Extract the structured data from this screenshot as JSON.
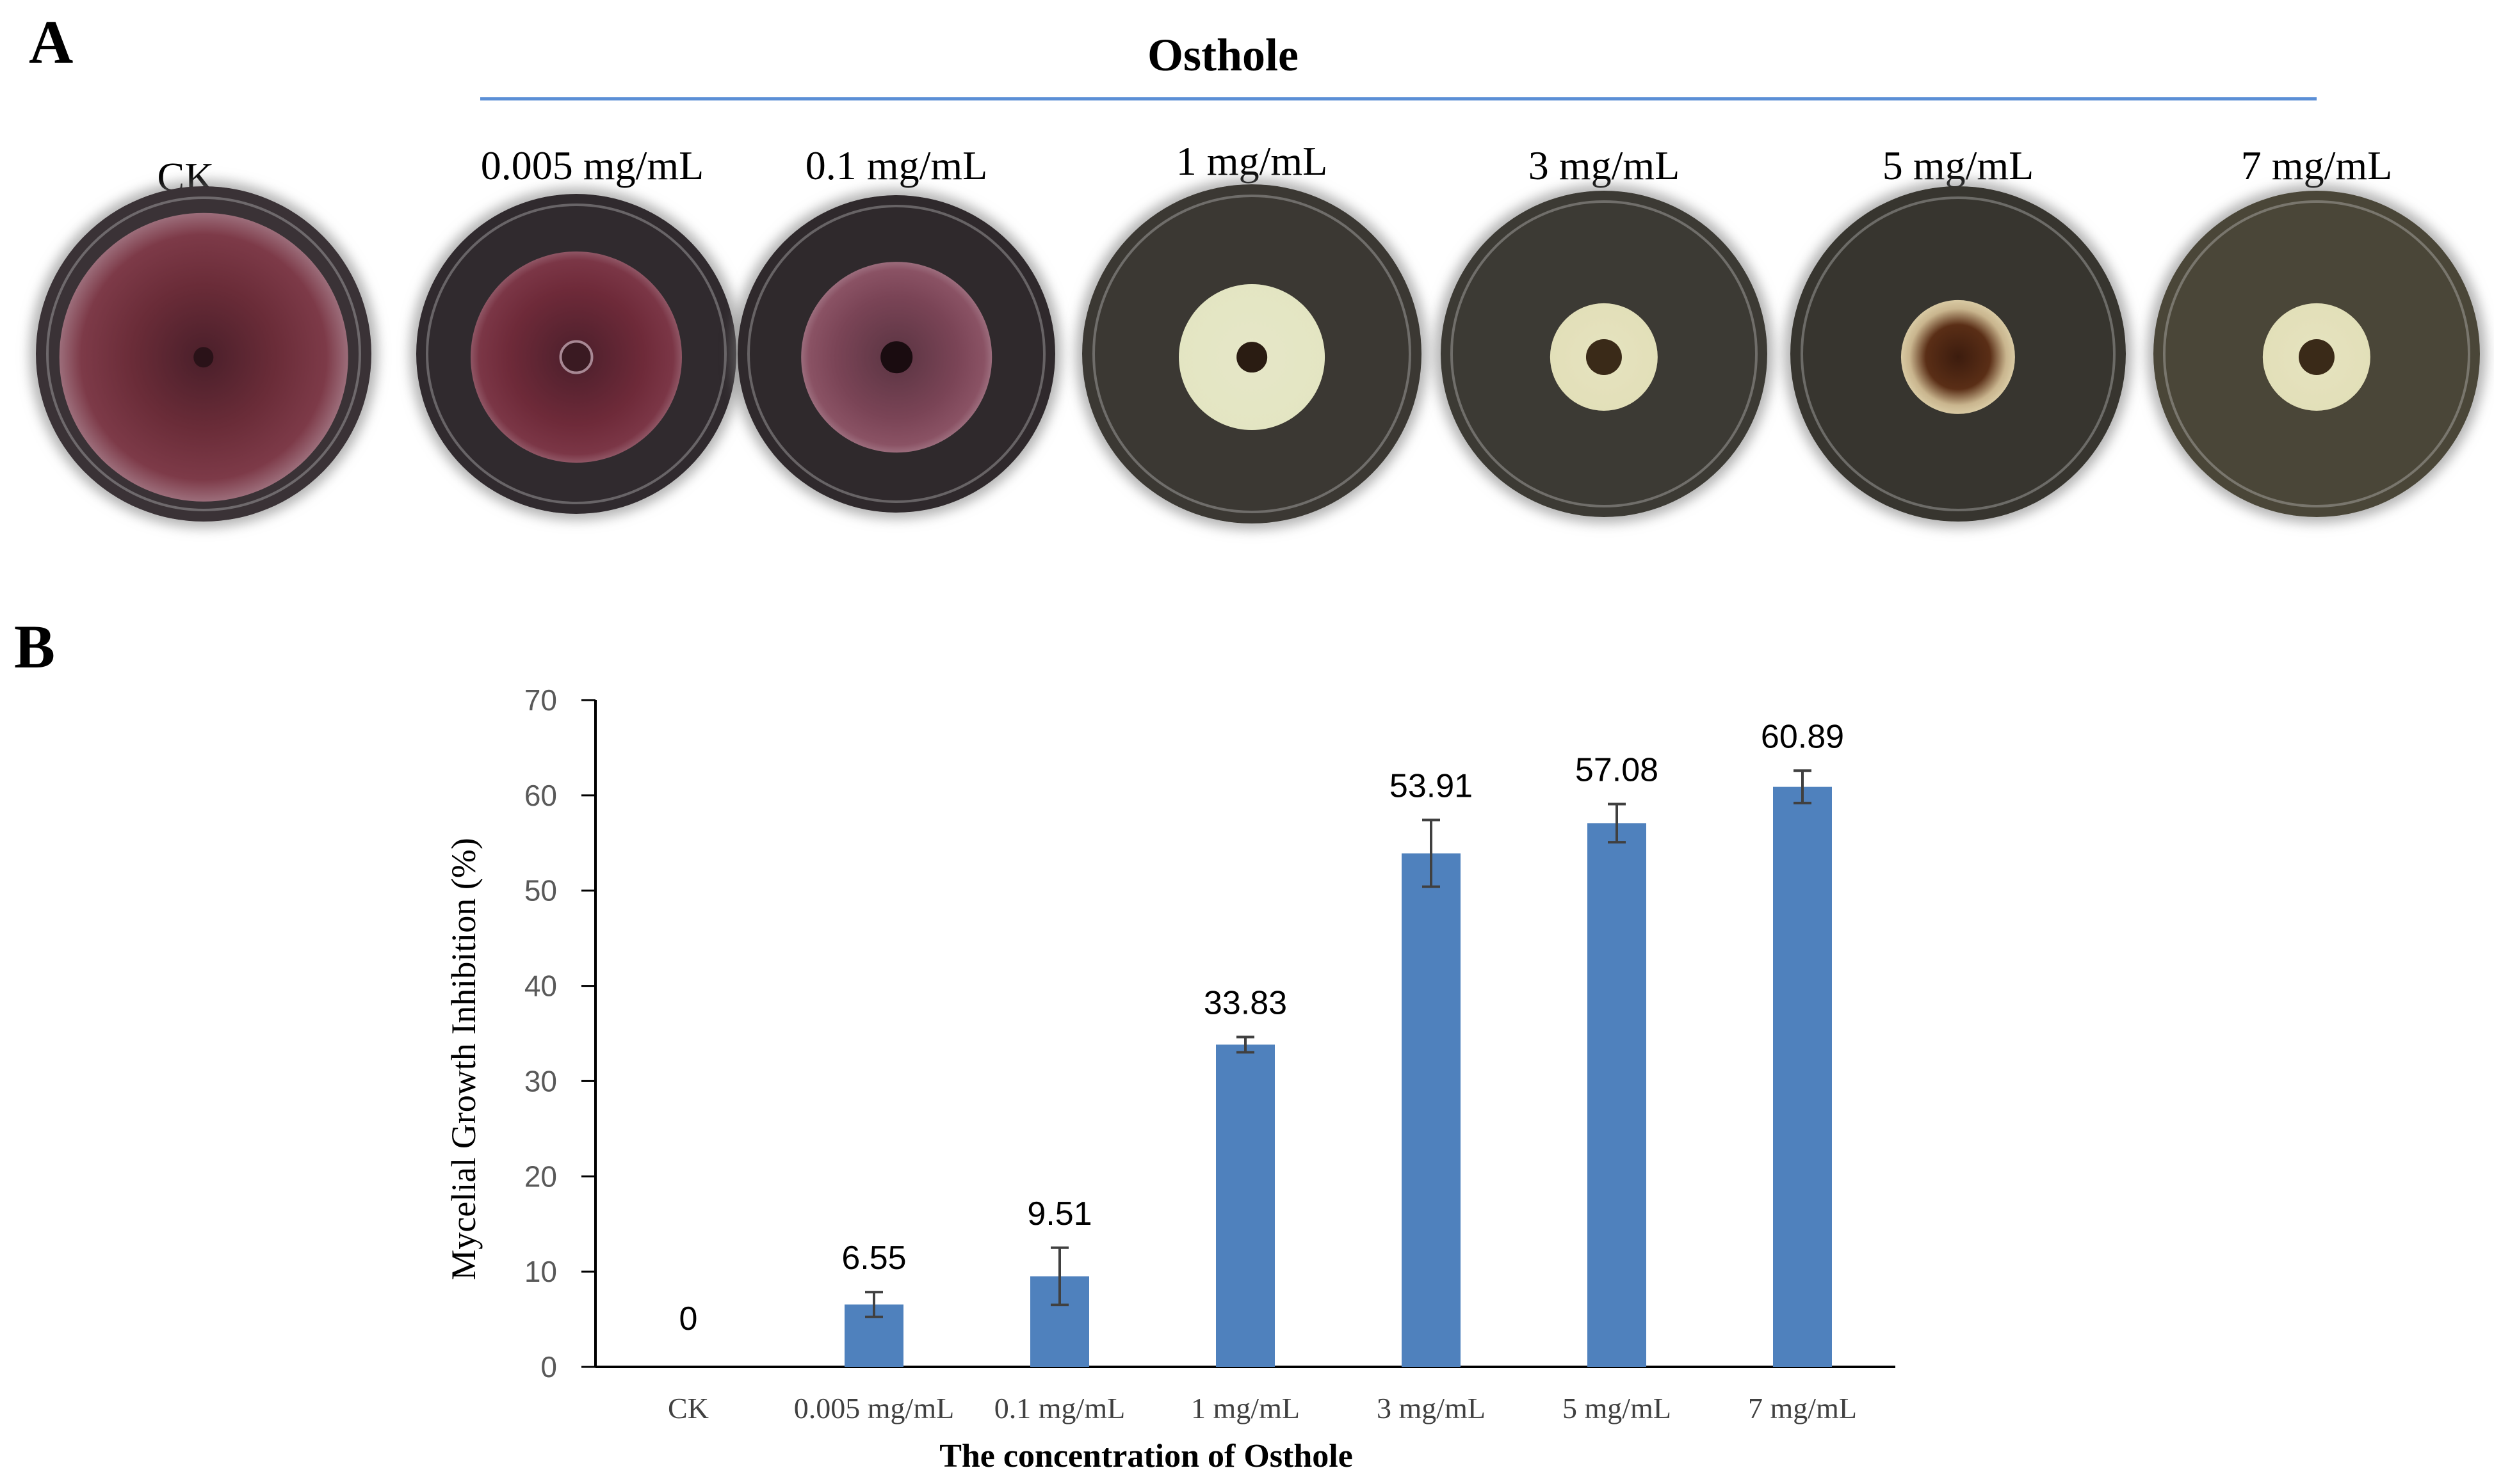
{
  "panel_a": {
    "letter": "A",
    "group_title": "Osthole",
    "plates": [
      {
        "label": "CK",
        "colony": "purple-large"
      },
      {
        "label": "0.005 mg/mL",
        "colony": "purple-medium"
      },
      {
        "label": "0.1 mg/mL",
        "colony": "purple-small"
      },
      {
        "label": "1 mg/mL",
        "colony": "white-medium"
      },
      {
        "label": "3 mg/mL",
        "colony": "white-small"
      },
      {
        "label": "5 mg/mL",
        "colony": "brown-small"
      },
      {
        "label": "7 mg/mL",
        "colony": "white-small"
      }
    ]
  },
  "panel_b": {
    "letter": "B"
  },
  "chart_data": {
    "type": "bar",
    "title": "",
    "xlabel": "The concentration of Osthole",
    "ylabel": "Mycelial Growth Inhibition (%)",
    "categories": [
      "CK",
      "0.005 mg/mL",
      "0.1 mg/mL",
      "1 mg/mL",
      "3 mg/mL",
      "5 mg/mL",
      "7 mg/mL"
    ],
    "values": [
      0,
      6.55,
      9.51,
      33.83,
      53.91,
      57.08,
      60.89
    ],
    "data_labels": [
      "0",
      "6.55",
      "9.51",
      "33.83",
      "53.91",
      "57.08",
      "60.89"
    ],
    "error": [
      0,
      1.3,
      3.0,
      0.8,
      3.5,
      2.0,
      1.7
    ],
    "ylim": [
      0,
      70
    ],
    "yticks": [
      0,
      10,
      20,
      30,
      40,
      50,
      60,
      70
    ],
    "bar_color": "#4f81bd",
    "grid": false
  }
}
